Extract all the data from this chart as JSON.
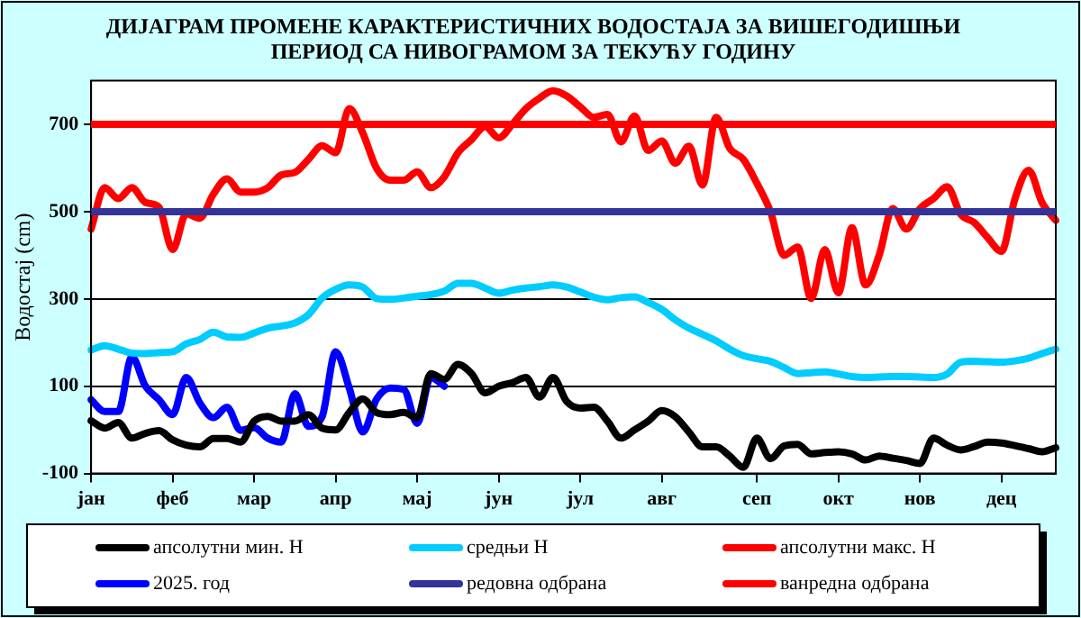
{
  "chart_data": {
    "type": "line",
    "title": "ДИЈАГРАМ ПРОМЕНЕ КАРАКТЕРИСТИЧНИХ ВОДОСТАЈА ЗА ВИШЕГОДИШЊИ\nПЕРИОД СА НИВОГРАМОМ ЗА ТЕКУЋУ ГОДИНУ",
    "ylabel": "Водостај (cm)",
    "categories": [
      "јан",
      null,
      null,
      null,
      null,
      null,
      "феб",
      null,
      null,
      null,
      null,
      null,
      "мар",
      null,
      null,
      null,
      null,
      null,
      "апр",
      null,
      null,
      null,
      null,
      null,
      "мај",
      null,
      null,
      null,
      null,
      null,
      "јун",
      null,
      null,
      null,
      null,
      null,
      "јул",
      null,
      null,
      null,
      null,
      null,
      "авг",
      null,
      null,
      null,
      null,
      null,
      null,
      "сеп",
      null,
      null,
      null,
      null,
      null,
      "окт",
      null,
      null,
      null,
      null,
      null,
      "нов",
      null,
      null,
      null,
      null,
      null,
      "дец",
      null,
      null,
      null,
      null
    ],
    "ylim": [
      -100,
      800
    ],
    "yticks": [
      -100,
      100,
      300,
      500,
      700
    ],
    "grid": "y",
    "legend": "bottom",
    "marker": "none",
    "line_style": "solid",
    "series": [
      {
        "name": "апсолутни мин. Н",
        "color": "#000000",
        "values": [
          21,
          4,
          17,
          -19,
          -8,
          -2,
          -23,
          -35,
          -39,
          -20,
          -20,
          -28,
          20,
          31,
          20,
          20,
          35,
          4,
          0,
          40,
          71,
          40,
          35,
          40,
          28,
          129,
          116,
          150,
          129,
          85,
          100,
          108,
          120,
          75,
          120,
          65,
          50,
          52,
          20,
          -19,
          0,
          20,
          44,
          30,
          -5,
          -39,
          -39,
          -60,
          -86,
          -19,
          -66,
          -37,
          -33,
          -55,
          -52,
          -50,
          -55,
          -69,
          -60,
          -65,
          -70,
          -77,
          -19,
          -35,
          -46,
          -38,
          -28,
          -30,
          -36,
          -43,
          -50,
          -41
        ]
      },
      {
        "name": "средњи Н",
        "color": "#00ccff",
        "values": [
          183,
          193,
          185,
          176,
          175,
          177,
          179,
          197,
          207,
          224,
          213,
          212,
          222,
          233,
          238,
          245,
          264,
          302,
          322,
          332,
          327,
          301,
          299,
          302,
          306,
          310,
          318,
          336,
          336,
          325,
          313,
          320,
          325,
          328,
          332,
          327,
          316,
          304,
          298,
          303,
          305,
          292,
          276,
          252,
          233,
          219,
          204,
          185,
          170,
          163,
          157,
          143,
          129,
          131,
          133,
          128,
          122,
          120,
          121,
          122,
          122,
          121,
          120,
          128,
          155,
          157,
          156,
          155,
          158,
          164,
          175,
          185
        ]
      },
      {
        "name": "апсолутни макс. Н",
        "color": "#ff0000",
        "values": [
          460,
          555,
          530,
          555,
          521,
          510,
          413,
          495,
          485,
          540,
          575,
          545,
          545,
          555,
          584,
          590,
          620,
          651,
          635,
          736,
          680,
          600,
          572,
          572,
          591,
          555,
          580,
          635,
          665,
          695,
          669,
          700,
          736,
          760,
          777,
          765,
          740,
          716,
          723,
          660,
          719,
          640,
          662,
          611,
          650,
          561,
          716,
          645,
          620,
          565,
          500,
          400,
          419,
          301,
          413,
          314,
          463,
          332,
          400,
          507,
          460,
          507,
          530,
          557,
          494,
          475,
          440,
          409,
          530,
          595,
          520,
          480
        ]
      },
      {
        "name": "2025. год",
        "color": "#0000ff",
        "values": [
          69,
          42,
          42,
          167,
          100,
          69,
          35,
          120,
          62,
          28,
          52,
          -1,
          5,
          -19,
          -28,
          83,
          8,
          30,
          179,
          96,
          -5,
          70,
          96,
          93,
          15,
          120,
          100,
          null,
          null,
          null,
          null,
          null,
          null,
          null,
          null,
          null,
          null,
          null,
          null,
          null,
          null,
          null,
          null,
          null,
          null,
          null,
          null,
          null,
          null,
          null,
          null,
          null,
          null,
          null,
          null,
          null,
          null,
          null,
          null,
          null,
          null,
          null,
          null,
          null,
          null,
          null,
          null,
          null,
          null,
          null,
          null,
          null
        ]
      }
    ],
    "ref_lines": [
      {
        "axis": "y",
        "value": 500,
        "label": "редовна одбрана",
        "color": "#333399"
      },
      {
        "axis": "y",
        "value": 700,
        "label": "ванредна одбрана",
        "color": "#ff0000"
      }
    ]
  }
}
